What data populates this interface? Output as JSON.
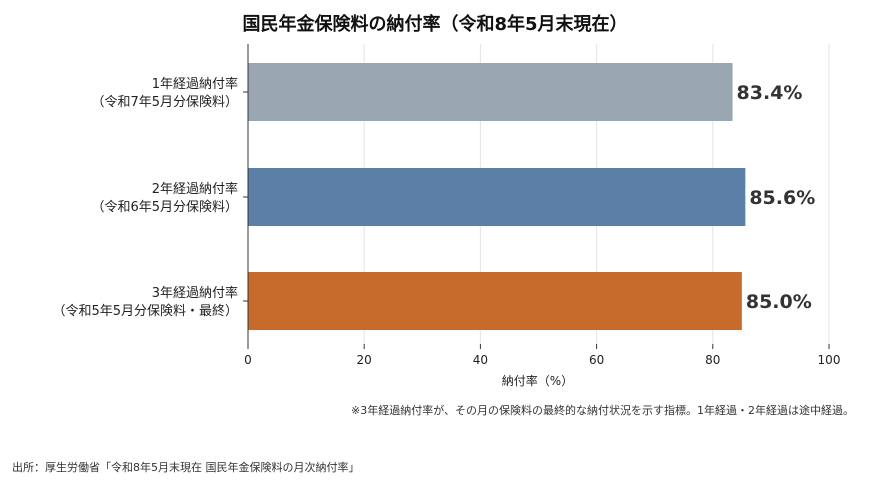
{
  "title": "国民年金保険料の納付率（令和8年5月末現在）",
  "chart_data": {
    "type": "bar",
    "orientation": "horizontal",
    "categories": [
      {
        "line1": "1年経過納付率",
        "line2": "（令和7年5月分保険料）"
      },
      {
        "line1": "2年経過納付率",
        "line2": "（令和6年5月分保険料）"
      },
      {
        "line1": "3年経過納付率",
        "line2": "（令和5年5月分保険料・最終）"
      }
    ],
    "values": [
      83.4,
      85.6,
      85.0
    ],
    "value_labels": [
      "83.4%",
      "85.6%",
      "85.0%"
    ],
    "colors": [
      "#9aa6b2",
      "#5b7fa6",
      "#c66b2b"
    ],
    "xlabel": "納付率（%）",
    "xlim": [
      0,
      100
    ],
    "xticks": [
      "0",
      "20",
      "40",
      "60",
      "80",
      "100"
    ],
    "grid": true
  },
  "note": "※3年経過納付率が、その月の保険料の最終的な納付状況を示す指標。1年経過・2年経過は途中経過。",
  "source": "出所：厚生労働省「令和8年5月末現在 国民年金保険料の月次納付率」"
}
